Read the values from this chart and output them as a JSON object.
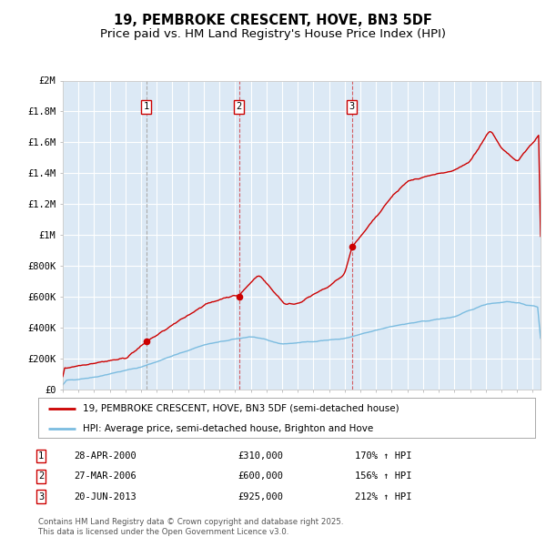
{
  "title": "19, PEMBROKE CRESCENT, HOVE, BN3 5DF",
  "subtitle": "Price paid vs. HM Land Registry's House Price Index (HPI)",
  "legend_label_red": "19, PEMBROKE CRESCENT, HOVE, BN3 5DF (semi-detached house)",
  "legend_label_blue": "HPI: Average price, semi-detached house, Brighton and Hove",
  "footer": "Contains HM Land Registry data © Crown copyright and database right 2025.\nThis data is licensed under the Open Government Licence v3.0.",
  "transactions": [
    {
      "num": 1,
      "date": "28-APR-2000",
      "price": 310000,
      "hpi_pct": "170% ↑ HPI",
      "year": 2000.33
    },
    {
      "num": 2,
      "date": "27-MAR-2006",
      "price": 600000,
      "hpi_pct": "156% ↑ HPI",
      "year": 2006.25
    },
    {
      "num": 3,
      "date": "20-JUN-2013",
      "price": 925000,
      "hpi_pct": "212% ↑ HPI",
      "year": 2013.46
    }
  ],
  "ylim": [
    0,
    2000000
  ],
  "xlim_start": 1995.0,
  "xlim_end": 2025.5,
  "background_color": "#ffffff",
  "plot_bg_color": "#dce9f5",
  "grid_color": "#ffffff",
  "red_color": "#cc0000",
  "blue_color": "#7bbce0",
  "title_fontsize": 10.5,
  "subtitle_fontsize": 9.5,
  "ytick_labels": [
    "£0",
    "£200K",
    "£400K",
    "£600K",
    "£800K",
    "£1M",
    "£1.2M",
    "£1.4M",
    "£1.6M",
    "£1.8M",
    "£2M"
  ],
  "ytick_values": [
    0,
    200000,
    400000,
    600000,
    800000,
    1000000,
    1200000,
    1400000,
    1600000,
    1800000,
    2000000
  ],
  "vline1_color": "#aaaaaa",
  "vline23_color": "#cc0000"
}
